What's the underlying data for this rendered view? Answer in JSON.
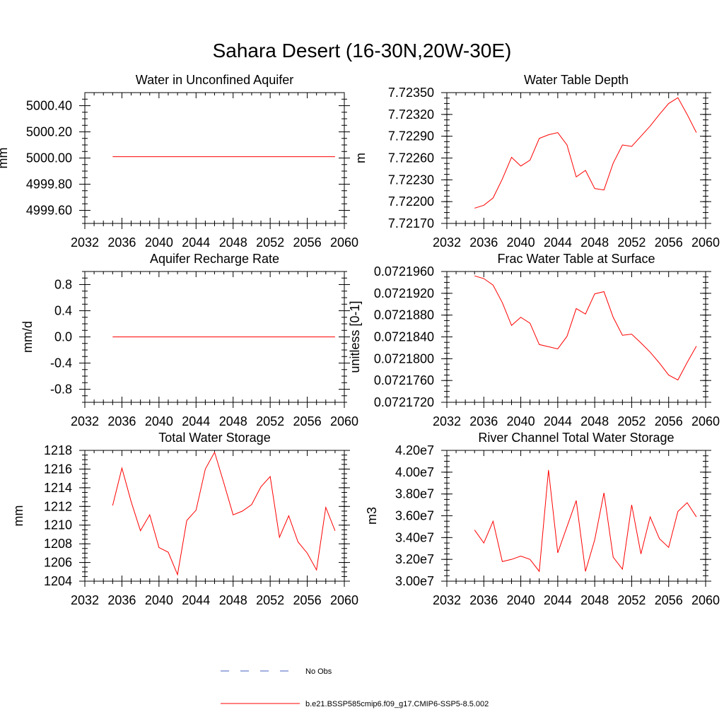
{
  "title": "Sahara Desert (16-30N,20W-30E)",
  "chart_data": [
    {
      "type": "line",
      "title": "Water in Unconfined Aquifer",
      "ylabel": "mm",
      "xlim": [
        2032,
        2060
      ],
      "xticks": [
        2032,
        2036,
        2040,
        2044,
        2048,
        2052,
        2056,
        2060
      ],
      "ylim": [
        4999.5,
        5000.5
      ],
      "yticks": [
        4999.6,
        4999.8,
        5000.0,
        5000.2,
        5000.4
      ],
      "ytick_labels": [
        "4999.60",
        "4999.80",
        "5000.00",
        "5000.20",
        "5000.40"
      ],
      "x": [
        2035,
        2036,
        2037,
        2038,
        2039,
        2040,
        2041,
        2042,
        2043,
        2044,
        2045,
        2046,
        2047,
        2048,
        2049,
        2050,
        2051,
        2052,
        2053,
        2054,
        2055,
        2056,
        2057,
        2058,
        2059
      ],
      "series": [
        {
          "color": "#ff0000",
          "values": [
            5000.01,
            5000.01,
            5000.01,
            5000.01,
            5000.01,
            5000.01,
            5000.01,
            5000.01,
            5000.01,
            5000.01,
            5000.01,
            5000.01,
            5000.01,
            5000.01,
            5000.01,
            5000.01,
            5000.01,
            5000.01,
            5000.01,
            5000.01,
            5000.01,
            5000.01,
            5000.01,
            5000.01,
            5000.01
          ]
        }
      ]
    },
    {
      "type": "line",
      "title": "Water Table Depth",
      "ylabel": "m",
      "xlim": [
        2032,
        2060
      ],
      "xticks": [
        2032,
        2036,
        2040,
        2044,
        2048,
        2052,
        2056,
        2060
      ],
      "ylim": [
        7.7217,
        7.7235
      ],
      "yticks": [
        7.7217,
        7.722,
        7.7223,
        7.7226,
        7.7229,
        7.7232,
        7.7235
      ],
      "ytick_labels": [
        "7.72170",
        "7.72200",
        "7.72230",
        "7.72260",
        "7.72290",
        "7.72320",
        "7.72350"
      ],
      "x": [
        2035,
        2036,
        2037,
        2038,
        2039,
        2040,
        2041,
        2042,
        2043,
        2044,
        2045,
        2046,
        2047,
        2048,
        2049,
        2050,
        2051,
        2052,
        2053,
        2054,
        2055,
        2056,
        2057,
        2058,
        2059
      ],
      "series": [
        {
          "color": "#ff0000",
          "values": [
            7.72191,
            7.72195,
            7.72205,
            7.72231,
            7.72261,
            7.72249,
            7.72257,
            7.72287,
            7.72292,
            7.72295,
            7.72278,
            7.72234,
            7.72243,
            7.72218,
            7.72216,
            7.72253,
            7.72278,
            7.72276,
            7.7229,
            7.72304,
            7.7232,
            7.72335,
            7.72343,
            7.7232,
            7.72295
          ]
        }
      ]
    },
    {
      "type": "line",
      "title": "Aquifer Recharge Rate",
      "ylabel": "mm/d",
      "xlim": [
        2032,
        2060
      ],
      "xticks": [
        2032,
        2036,
        2040,
        2044,
        2048,
        2052,
        2056,
        2060
      ],
      "ylim": [
        -1.0,
        1.0
      ],
      "yticks": [
        -0.8,
        -0.4,
        0.0,
        0.4,
        0.8
      ],
      "ytick_labels": [
        "-0.8",
        "-0.4",
        "0.0",
        "0.4",
        "0.8"
      ],
      "x": [
        2035,
        2036,
        2037,
        2038,
        2039,
        2040,
        2041,
        2042,
        2043,
        2044,
        2045,
        2046,
        2047,
        2048,
        2049,
        2050,
        2051,
        2052,
        2053,
        2054,
        2055,
        2056,
        2057,
        2058,
        2059
      ],
      "series": [
        {
          "color": "#ff0000",
          "values": [
            0,
            0,
            0,
            0,
            0,
            0,
            0,
            0,
            0,
            0,
            0,
            0,
            0,
            0,
            0,
            0,
            0,
            0,
            0,
            0,
            0,
            0,
            0,
            0,
            0
          ]
        }
      ]
    },
    {
      "type": "line",
      "title": "Frac Water Table at Surface",
      "ylabel": "unitless [0-1]",
      "xlim": [
        2032,
        2060
      ],
      "xticks": [
        2032,
        2036,
        2040,
        2044,
        2048,
        2052,
        2056,
        2060
      ],
      "ylim": [
        0.072172,
        0.072196
      ],
      "yticks": [
        0.072172,
        0.072176,
        0.07218,
        0.072184,
        0.072188,
        0.072192,
        0.072196
      ],
      "ytick_labels": [
        "0.0721720",
        "0.0721760",
        "0.0721800",
        "0.0721840",
        "0.0721880",
        "0.0721920",
        "0.0721960"
      ],
      "x": [
        2035,
        2036,
        2037,
        2038,
        2039,
        2040,
        2041,
        2042,
        2043,
        2044,
        2045,
        2046,
        2047,
        2048,
        2049,
        2050,
        2051,
        2052,
        2053,
        2054,
        2055,
        2056,
        2057,
        2058,
        2059
      ],
      "series": [
        {
          "color": "#ff0000",
          "values": [
            0.0721952,
            0.0721947,
            0.0721935,
            0.0721903,
            0.0721861,
            0.0721876,
            0.0721865,
            0.0721826,
            0.0721822,
            0.0721818,
            0.0721841,
            0.0721892,
            0.0721882,
            0.0721919,
            0.0721923,
            0.0721876,
            0.0721843,
            0.0721845,
            0.0721829,
            0.0721812,
            0.0721792,
            0.072177,
            0.0721761,
            0.0721793,
            0.0721823
          ]
        }
      ]
    },
    {
      "type": "line",
      "title": "Total Water Storage",
      "ylabel": "mm",
      "xlim": [
        2032,
        2060
      ],
      "xticks": [
        2032,
        2036,
        2040,
        2044,
        2048,
        2052,
        2056,
        2060
      ],
      "ylim": [
        1204,
        1218
      ],
      "yticks": [
        1204,
        1206,
        1208,
        1210,
        1212,
        1214,
        1216,
        1218
      ],
      "ytick_labels": [
        "1204",
        "1206",
        "1208",
        "1210",
        "1212",
        "1214",
        "1216",
        "1218"
      ],
      "x": [
        2035,
        2036,
        2037,
        2038,
        2039,
        2040,
        2041,
        2042,
        2043,
        2044,
        2045,
        2046,
        2047,
        2048,
        2049,
        2050,
        2051,
        2052,
        2053,
        2054,
        2055,
        2056,
        2057,
        2058,
        2059
      ],
      "series": [
        {
          "color": "#ff0000",
          "values": [
            1212.1,
            1216.1,
            1212.5,
            1209.4,
            1211.1,
            1207.6,
            1207.1,
            1204.7,
            1210.5,
            1211.6,
            1216.0,
            1217.8,
            1214.5,
            1211.1,
            1211.5,
            1212.2,
            1214.1,
            1215.2,
            1208.7,
            1211.0,
            1208.2,
            1207.0,
            1205.2,
            1211.9,
            1209.4
          ]
        }
      ]
    },
    {
      "type": "line",
      "title": "River Channel Total Water Storage",
      "ylabel": "m3",
      "xlim": [
        2032,
        2060
      ],
      "xticks": [
        2032,
        2036,
        2040,
        2044,
        2048,
        2052,
        2056,
        2060
      ],
      "ylim": [
        30000000,
        42000000
      ],
      "yticks": [
        30000000,
        32000000,
        34000000,
        36000000,
        38000000,
        40000000,
        42000000
      ],
      "ytick_labels": [
        "3.00e7",
        "3.20e7",
        "3.40e7",
        "3.60e7",
        "3.80e7",
        "4.00e7",
        "4.20e7"
      ],
      "x": [
        2035,
        2036,
        2037,
        2038,
        2039,
        2040,
        2041,
        2042,
        2043,
        2044,
        2045,
        2046,
        2047,
        2048,
        2049,
        2050,
        2051,
        2052,
        2053,
        2054,
        2055,
        2056,
        2057,
        2058,
        2059
      ],
      "series": [
        {
          "color": "#ff0000",
          "values": [
            34700000,
            33500000,
            35500000,
            31800000,
            32000000,
            32300000,
            32000000,
            30900000,
            40200000,
            32600000,
            35000000,
            37400000,
            30900000,
            33800000,
            38100000,
            32200000,
            31100000,
            37000000,
            32500000,
            35900000,
            33900000,
            33100000,
            36400000,
            37200000,
            35900000
          ]
        }
      ]
    }
  ],
  "legend": [
    {
      "label": "No Obs",
      "color": "#4060c0",
      "style": "dashed"
    },
    {
      "label": "b.e21.BSSP585cmip6.f09_g17.CMIP6-SSP5-8.5.002",
      "color": "#ff0000",
      "style": "solid"
    }
  ]
}
